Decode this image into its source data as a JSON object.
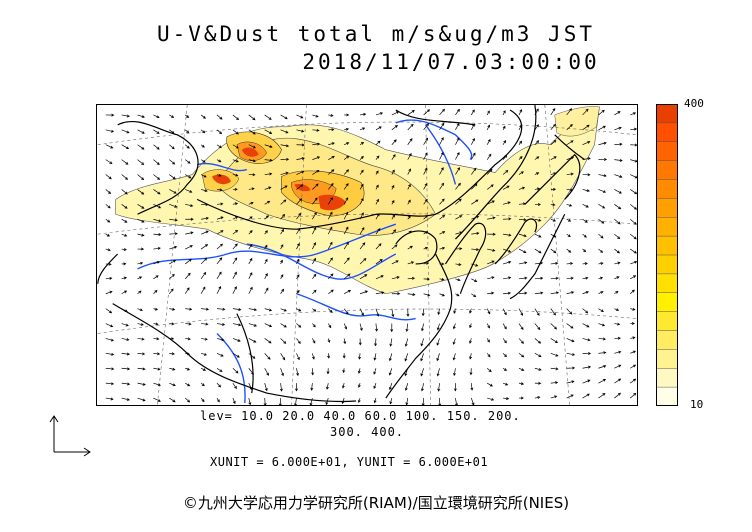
{
  "title": {
    "line1": "U-V&Dust total m/s&ug/m3 JST",
    "line2": "2018/11/07.03:00:00"
  },
  "colorbar": {
    "max_label": "400",
    "min_label": "10",
    "colors": [
      "#ffffe8",
      "#fff8c0",
      "#fff290",
      "#ffec60",
      "#ffe830",
      "#fff000",
      "#ffe000",
      "#ffd000",
      "#ffc000",
      "#ffb000",
      "#ffa000",
      "#ff8c00",
      "#ff7800",
      "#ff6400",
      "#ff5000",
      "#e84000"
    ]
  },
  "legend": {
    "levels_line1": "lev= 10.0 20.0 40.0 60.0 100. 150. 200.",
    "levels_line2": "300. 400.",
    "units": "XUNIT = 6.000E+01, YUNIT = 6.000E+01"
  },
  "credit": "©九州大学応用力学研究所(RIAM)/国立環境研究所(NIES)",
  "map_colors": {
    "land_line": "#000000",
    "river": "#1e50ff",
    "dust_low": "#fff6b0",
    "dust_mid": "#ffdc50",
    "dust_high": "#ff9a20",
    "dust_peak": "#e8420a"
  }
}
